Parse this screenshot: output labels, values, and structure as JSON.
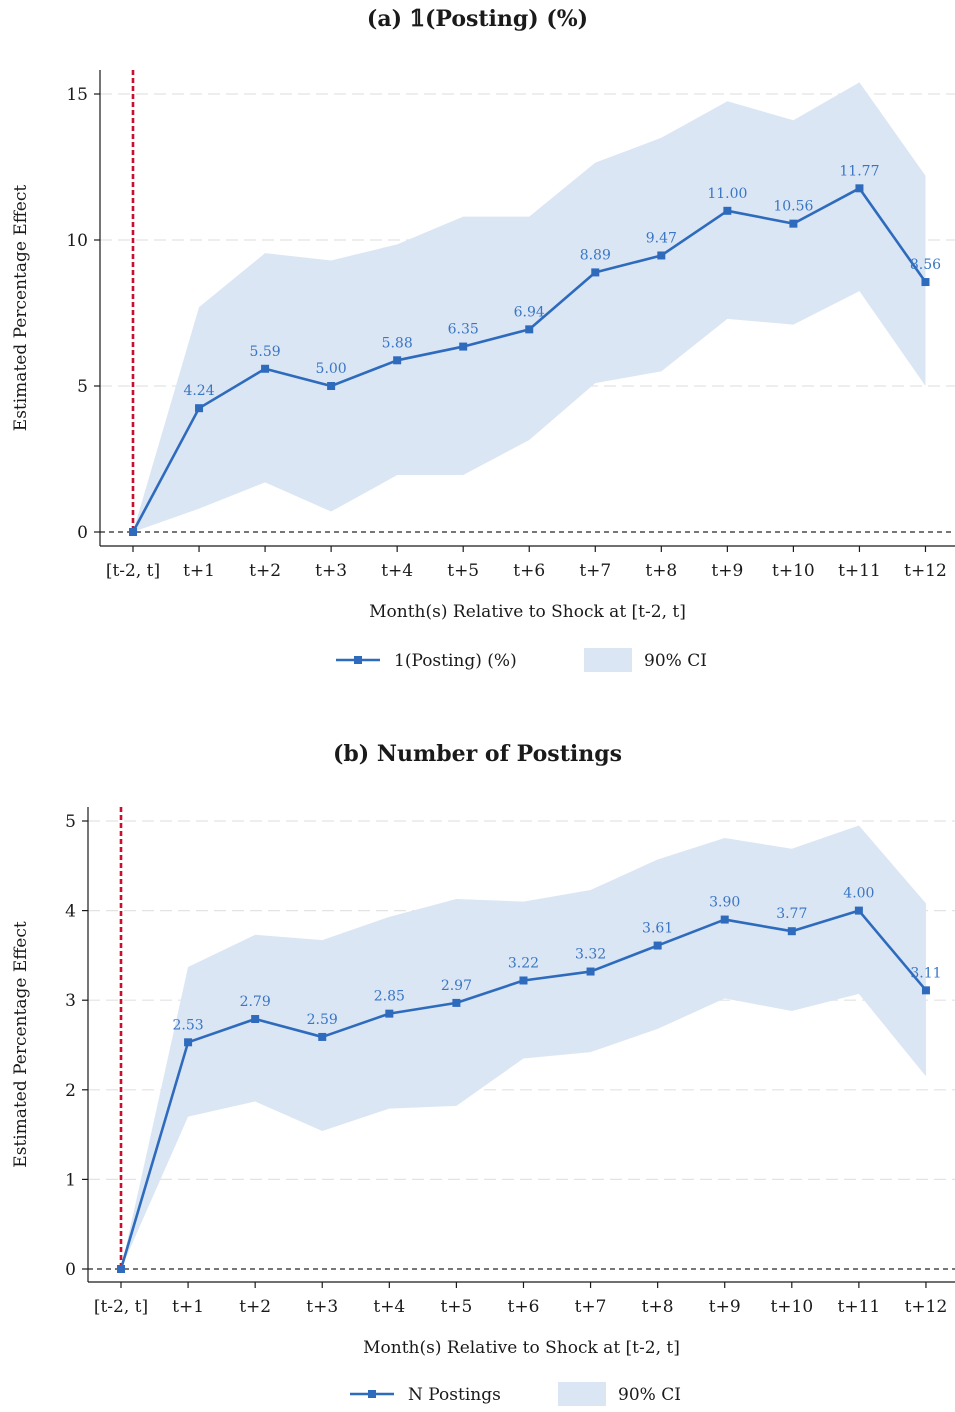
{
  "chart_data": [
    {
      "type": "line",
      "title": "(a) 𝟙(Posting) (%)",
      "xlabel": "Month(s) Relative to Shock at [t-2, t]",
      "ylabel": "Estimated Percentage Effect",
      "categories": [
        "[t-2, t]",
        "t+1",
        "t+2",
        "t+3",
        "t+4",
        "t+5",
        "t+6",
        "t+7",
        "t+8",
        "t+9",
        "t+10",
        "t+11",
        "t+12"
      ],
      "ylim": [
        0,
        15.5
      ],
      "yticks": [
        0,
        5,
        10,
        15
      ],
      "series": [
        {
          "name": "1(Posting) (%)",
          "values": [
            0,
            4.24,
            5.59,
            5.0,
            5.88,
            6.35,
            6.94,
            8.89,
            9.47,
            11.0,
            10.56,
            11.77,
            8.56
          ],
          "labels": [
            "",
            "4.24",
            "5.59",
            "5.00",
            "5.88",
            "6.35",
            "6.94",
            "8.89",
            "9.47",
            "11.00",
            "10.56",
            "11.77",
            "8.56"
          ],
          "ci_lower": [
            0,
            0.8,
            1.7,
            0.7,
            1.95,
            1.95,
            3.15,
            5.1,
            5.5,
            7.3,
            7.1,
            8.25,
            5.0
          ],
          "ci_upper": [
            0,
            7.7,
            9.55,
            9.3,
            9.85,
            10.8,
            10.8,
            12.65,
            13.5,
            14.75,
            14.1,
            15.4,
            12.2
          ]
        }
      ],
      "ci_label": "90% CI",
      "line_color": "#2e6bbd",
      "ci_color": "#dbe6f4",
      "vline_color": "#c8102e",
      "legend": "bottom",
      "grid": true
    },
    {
      "type": "line",
      "title": "(b) Number of Postings",
      "xlabel": "Month(s) Relative to Shock at [t-2, t]",
      "ylabel": "Estimated Percentage Effect",
      "categories": [
        "[t-2, t]",
        "t+1",
        "t+2",
        "t+3",
        "t+4",
        "t+5",
        "t+6",
        "t+7",
        "t+8",
        "t+9",
        "t+10",
        "t+11",
        "t+12"
      ],
      "ylim": [
        0,
        5.15
      ],
      "yticks": [
        0,
        1,
        2,
        3,
        4,
        5
      ],
      "series": [
        {
          "name": "N Postings",
          "values": [
            0,
            2.53,
            2.79,
            2.59,
            2.85,
            2.97,
            3.22,
            3.32,
            3.61,
            3.9,
            3.77,
            4.0,
            3.11
          ],
          "labels": [
            "",
            "2.53",
            "2.79",
            "2.59",
            "2.85",
            "2.97",
            "3.22",
            "3.32",
            "3.61",
            "3.90",
            "3.77",
            "4.00",
            "3.11"
          ],
          "ci_lower": [
            0,
            1.7,
            1.87,
            1.54,
            1.79,
            1.82,
            2.35,
            2.42,
            2.68,
            3.02,
            2.88,
            3.07,
            2.15
          ],
          "ci_upper": [
            0,
            3.37,
            3.73,
            3.67,
            3.93,
            4.13,
            4.1,
            4.23,
            4.57,
            4.81,
            4.69,
            4.95,
            4.08
          ]
        }
      ],
      "ci_label": "90% CI",
      "line_color": "#2e6bbd",
      "ci_color": "#dbe6f4",
      "vline_color": "#c8102e",
      "legend": "bottom",
      "grid": true
    }
  ]
}
